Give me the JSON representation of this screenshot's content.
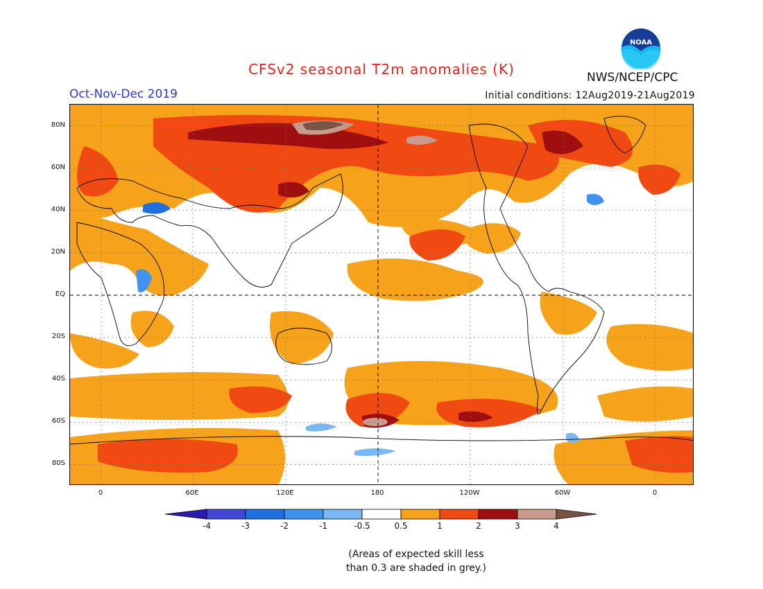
{
  "title": "CFSv2 seasonal T2m anomalies (K)",
  "period": "Oct-Nov-Dec 2019",
  "initial_conditions": "Initial conditions: 12Aug2019-21Aug2019",
  "agency": "NWS/NCEP/CPC",
  "logo": {
    "text": "NOAA",
    "ring_color": "#1a3c99",
    "sky_color": "#16b8f0"
  },
  "lat_labels": [
    "80N",
    "60N",
    "40N",
    "20N",
    "EQ",
    "20S",
    "40S",
    "60S",
    "80S"
  ],
  "lon_labels": [
    "0",
    "60E",
    "120E",
    "180",
    "120W",
    "60W",
    "0"
  ],
  "colorbar": {
    "labels": [
      "-4",
      "-3",
      "-2",
      "-1",
      "-0.5",
      "0.5",
      "1",
      "2",
      "3",
      "4"
    ],
    "colors": [
      "#2a1ab0",
      "#4046d6",
      "#1f6fdc",
      "#3f93ee",
      "#7ab8f5",
      "#ffffff",
      "#f7a21b",
      "#f04a12",
      "#a00f0f",
      "#c99b8d",
      "#7a5244"
    ]
  },
  "note_line1": "(Areas of expected skill less",
  "note_line2": "than 0.3 are shaded in grey.)"
}
